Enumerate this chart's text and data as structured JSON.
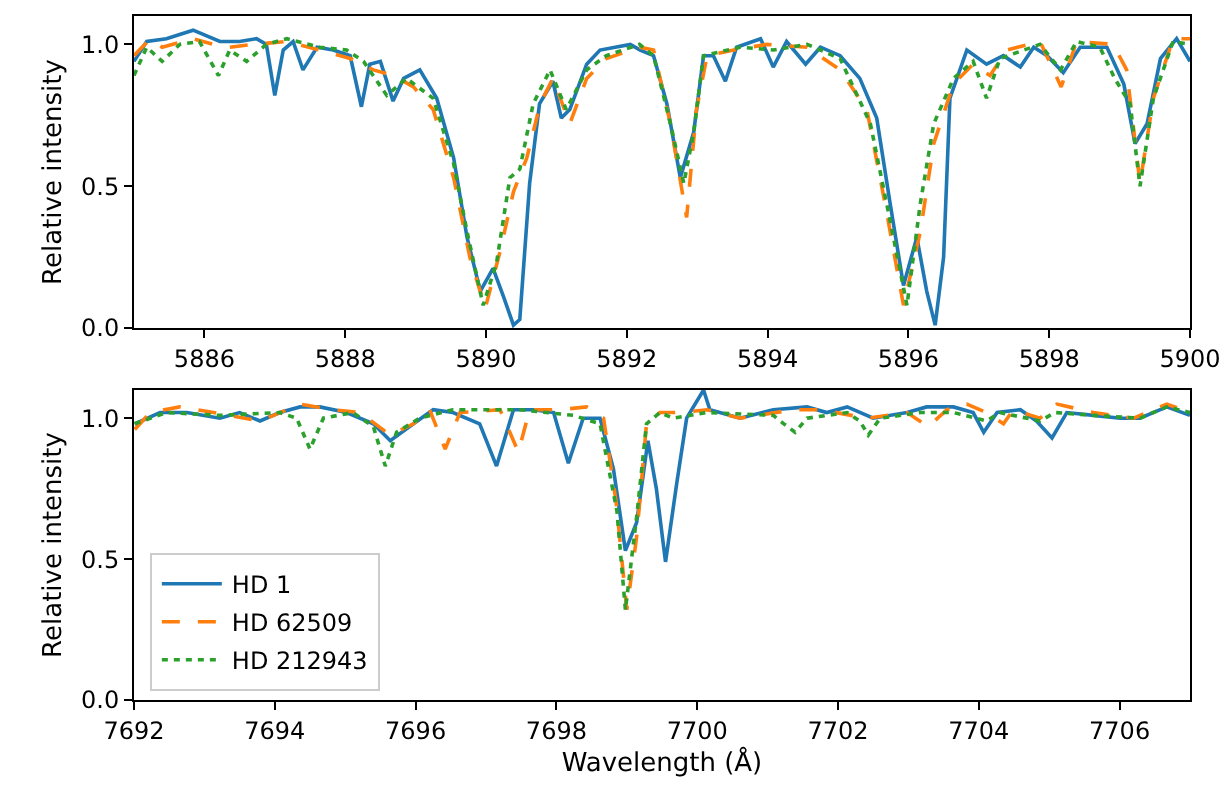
{
  "chart_data": [
    {
      "type": "line",
      "ylabel": "Relative intensity",
      "xlim": [
        5885,
        5900
      ],
      "xticks": [
        5886,
        5888,
        5890,
        5892,
        5894,
        5896,
        5898,
        5900
      ],
      "ylim": [
        0,
        1.1
      ],
      "yticks": [
        {
          "value": 0,
          "label": "0.0"
        },
        {
          "value": 0.5,
          "label": "0.5"
        },
        {
          "value": 1,
          "label": "1.0"
        }
      ],
      "grid": false,
      "legend": false,
      "series": [
        {
          "color": "#1f77b4",
          "line_style": "solid",
          "x": [
            5885,
            5885.18,
            5885.46,
            5885.84,
            5886.22,
            5886.5,
            5886.74,
            5886.88,
            5887.0,
            5887.12,
            5887.26,
            5887.4,
            5887.6,
            5887.83,
            5888.07,
            5888.23,
            5888.35,
            5888.5,
            5888.68,
            5888.83,
            5889.06,
            5889.3,
            5889.54,
            5889.73,
            5889.92,
            5890.1,
            5890.25,
            5890.39,
            5890.48,
            5890.62,
            5890.76,
            5890.95,
            5891.07,
            5891.19,
            5891.43,
            5891.62,
            5892.05,
            5892.19,
            5892.38,
            5892.57,
            5892.76,
            5892.95,
            5893.09,
            5893.23,
            5893.4,
            5893.56,
            5893.9,
            5894.08,
            5894.27,
            5894.54,
            5894.75,
            5895.03,
            5895.31,
            5895.55,
            5895.74,
            5895.93,
            5896.12,
            5896.26,
            5896.38,
            5896.5,
            5896.59,
            5896.83,
            5897.11,
            5897.35,
            5897.59,
            5897.78,
            5897.97,
            5898.2,
            5898.44,
            5898.82,
            5899.06,
            5899.22,
            5899.39,
            5899.58,
            5899.81,
            5900
          ],
          "values": [
            0.94,
            1.01,
            1.02,
            1.05,
            1.01,
            1.01,
            1.02,
            1.0,
            0.82,
            0.98,
            1.01,
            0.91,
            0.99,
            0.98,
            0.96,
            0.78,
            0.93,
            0.94,
            0.8,
            0.88,
            0.91,
            0.81,
            0.6,
            0.32,
            0.13,
            0.21,
            0.11,
            0.01,
            0.03,
            0.51,
            0.79,
            0.87,
            0.74,
            0.77,
            0.93,
            0.98,
            1.0,
            0.98,
            0.96,
            0.79,
            0.53,
            0.69,
            0.96,
            0.96,
            0.87,
            0.99,
            1.02,
            0.92,
            1.01,
            0.93,
            0.99,
            0.96,
            0.88,
            0.74,
            0.44,
            0.15,
            0.32,
            0.13,
            0.01,
            0.25,
            0.81,
            0.98,
            0.93,
            0.96,
            0.92,
            0.99,
            0.96,
            0.9,
            0.99,
            0.99,
            0.86,
            0.65,
            0.72,
            0.95,
            1.02,
            0.94
          ]
        },
        {
          "color": "#ff7f0e",
          "line_style": "dashed",
          "x": [
            5885,
            5885.23,
            5885.4,
            5885.84,
            5886.13,
            5886.36,
            5886.7,
            5887.17,
            5887.64,
            5888.07,
            5888.4,
            5888.69,
            5888.97,
            5889.25,
            5889.54,
            5889.77,
            5889.99,
            5890.2,
            5890.39,
            5890.58,
            5890.77,
            5890.95,
            5891.19,
            5891.43,
            5891.71,
            5892.18,
            5892.38,
            5892.62,
            5892.85,
            5892.99,
            5893.14,
            5893.52,
            5893.99,
            5894.56,
            5895.03,
            5895.41,
            5895.69,
            5895.93,
            5896.17,
            5896.36,
            5896.64,
            5896.92,
            5897.16,
            5897.4,
            5897.87,
            5898.17,
            5898.39,
            5898.91,
            5899.1,
            5899.29,
            5899.48,
            5899.76,
            5900
          ],
          "values": [
            0.96,
            1.02,
            0.99,
            1.02,
            1.0,
            0.99,
            1.0,
            1.01,
            0.98,
            0.95,
            0.91,
            0.89,
            0.85,
            0.77,
            0.53,
            0.25,
            0.07,
            0.27,
            0.48,
            0.6,
            0.79,
            0.88,
            0.72,
            0.88,
            0.95,
            0.99,
            0.98,
            0.72,
            0.39,
            0.77,
            0.96,
            0.98,
            1.0,
            0.99,
            0.91,
            0.77,
            0.41,
            0.08,
            0.34,
            0.65,
            0.86,
            0.93,
            0.89,
            0.98,
            1.01,
            0.85,
            1.01,
            1.0,
            0.91,
            0.51,
            0.81,
            1.02,
            1.02
          ]
        },
        {
          "color": "#2ca02c",
          "line_style": "dotted",
          "x": [
            5885,
            5885.18,
            5885.4,
            5885.65,
            5885.93,
            5886.2,
            5886.36,
            5886.6,
            5886.88,
            5887.17,
            5887.64,
            5888.02,
            5888.26,
            5888.59,
            5888.87,
            5889.25,
            5889.54,
            5889.73,
            5889.96,
            5890.15,
            5890.34,
            5890.48,
            5890.67,
            5890.91,
            5891.14,
            5891.43,
            5891.71,
            5892.18,
            5892.38,
            5892.62,
            5892.81,
            5892.95,
            5893.09,
            5893.61,
            5894.08,
            5894.56,
            5895.03,
            5895.46,
            5895.69,
            5895.98,
            5896.17,
            5896.36,
            5896.64,
            5896.92,
            5897.11,
            5897.3,
            5897.87,
            5898.16,
            5898.39,
            5898.72,
            5898.93,
            5899.15,
            5899.29,
            5899.48,
            5899.76,
            5900
          ],
          "values": [
            0.89,
            0.99,
            0.94,
            1.0,
            1.01,
            0.89,
            0.98,
            0.94,
            1.0,
            1.02,
            0.99,
            0.98,
            0.94,
            0.82,
            0.88,
            0.81,
            0.58,
            0.34,
            0.08,
            0.23,
            0.53,
            0.56,
            0.79,
            0.91,
            0.77,
            0.91,
            0.96,
            1.0,
            0.96,
            0.72,
            0.51,
            0.69,
            0.96,
            0.99,
            0.98,
            1.0,
            0.95,
            0.72,
            0.44,
            0.08,
            0.44,
            0.72,
            0.88,
            0.94,
            0.81,
            0.95,
            1.0,
            0.91,
            1.01,
            0.99,
            0.88,
            0.79,
            0.5,
            0.81,
            1.01,
            1.0
          ]
        }
      ]
    },
    {
      "type": "line",
      "xlabel": "Wavelength (Å)",
      "ylabel": "Relative intensity",
      "xlim": [
        7692,
        7707
      ],
      "xticks": [
        7692,
        7694,
        7696,
        7698,
        7700,
        7702,
        7704,
        7706
      ],
      "ylim": [
        0,
        1.1
      ],
      "yticks": [
        {
          "value": 0,
          "label": "0.0"
        },
        {
          "value": 0.5,
          "label": "0.5"
        },
        {
          "value": 1,
          "label": "1.0"
        }
      ],
      "grid": false,
      "legend": "bottom left",
      "series": [
        {
          "name": "HD 1",
          "color": "#1f77b4",
          "line_style": "solid",
          "x": [
            7692.01,
            7692.37,
            7692.75,
            7693.22,
            7693.5,
            7693.79,
            7694.07,
            7694.36,
            7694.64,
            7695.02,
            7695.4,
            7695.64,
            7695.97,
            7696.25,
            7696.53,
            7696.91,
            7697.15,
            7697.39,
            7697.67,
            7697.96,
            7698.17,
            7698.38,
            7698.62,
            7698.81,
            7698.98,
            7699.14,
            7699.3,
            7699.42,
            7699.55,
            7699.71,
            7699.85,
            7700.09,
            7700.18,
            7700.61,
            7701.08,
            7701.56,
            7701.84,
            7702.13,
            7702.5,
            7702.98,
            7703.26,
            7703.64,
            7703.92,
            7704.07,
            7704.26,
            7704.59,
            7704.82,
            7705.04,
            7705.25,
            7705.63,
            7706.01,
            7706.29,
            7706.67,
            7707
          ],
          "values": [
            0.98,
            1.02,
            1.02,
            1.0,
            1.02,
            0.99,
            1.02,
            1.04,
            1.04,
            1.02,
            0.98,
            0.92,
            0.98,
            1.03,
            1.02,
            0.98,
            0.83,
            1.03,
            1.03,
            1.02,
            0.84,
            1.0,
            1.0,
            0.82,
            0.53,
            0.63,
            0.92,
            0.75,
            0.49,
            0.77,
            1.0,
            1.1,
            1.03,
            1.0,
            1.03,
            1.04,
            1.02,
            1.04,
            1.0,
            1.02,
            1.04,
            1.04,
            1.02,
            0.95,
            1.02,
            1.03,
            0.99,
            0.93,
            1.02,
            1.01,
            1.0,
            1.0,
            1.04,
            1.01
          ]
        },
        {
          "name": "HD 62509",
          "color": "#ff7f0e",
          "line_style": "dashed",
          "x": [
            7692.01,
            7692.23,
            7692.65,
            7693.13,
            7693.79,
            7694.36,
            7694.83,
            7695.21,
            7695.64,
            7695.97,
            7696.2,
            7696.42,
            7696.63,
            7697.2,
            7697.46,
            7697.62,
            7698.05,
            7698.43,
            7698.67,
            7698.85,
            7699.0,
            7699.14,
            7699.28,
            7699.47,
            7699.76,
            7700.14,
            7700.61,
            7701.37,
            7701.75,
            7702.41,
            7702.98,
            7703.28,
            7703.55,
            7703.83,
            7704.11,
            7704.35,
            7704.49,
            7704.87,
            7705.11,
            7705.63,
            7706.2,
            7706.67,
            7707
          ],
          "values": [
            0.96,
            1.02,
            1.04,
            1.02,
            0.99,
            1.05,
            1.03,
            1.02,
            0.94,
            0.98,
            1.03,
            0.89,
            1.02,
            1.03,
            0.88,
            1.03,
            1.03,
            1.04,
            1.0,
            0.7,
            0.32,
            0.58,
            0.98,
            1.02,
            1.02,
            1.03,
            1.0,
            1.03,
            1.03,
            1.0,
            1.02,
            0.97,
            1.03,
            1.05,
            1.02,
            0.98,
            1.03,
            1.0,
            1.05,
            1.02,
            1.0,
            1.05,
            1.02
          ]
        },
        {
          "name": "HD 212943",
          "color": "#2ca02c",
          "line_style": "dotted",
          "x": [
            7692.01,
            7692.46,
            7693.22,
            7694.07,
            7694.31,
            7694.5,
            7694.69,
            7695.11,
            7695.4,
            7695.57,
            7695.73,
            7696.06,
            7696.53,
            7697.48,
            7698.24,
            7698.62,
            7698.86,
            7698.98,
            7699.14,
            7699.28,
            7699.47,
            7699.66,
            7700.14,
            7701.08,
            7701.23,
            7701.39,
            7701.56,
            7702.13,
            7702.31,
            7702.43,
            7702.6,
            7703.17,
            7703.64,
            7704.11,
            7704.3,
            7704.87,
            7705.08,
            7705.63,
            7706.29,
            7706.67,
            7707
          ],
          "values": [
            0.98,
            1.02,
            1.01,
            1.02,
            1.0,
            0.89,
            1.0,
            1.02,
            0.97,
            0.83,
            0.95,
            1.0,
            1.03,
            1.03,
            1.01,
            0.98,
            0.67,
            0.32,
            0.65,
            0.98,
            1.02,
            1.0,
            1.02,
            1.01,
            0.98,
            0.95,
            1.0,
            1.02,
            0.99,
            0.94,
            1.0,
            1.02,
            1.02,
            0.99,
            1.02,
            0.99,
            1.02,
            1.01,
            1.0,
            1.04,
            1.02
          ]
        }
      ]
    }
  ]
}
